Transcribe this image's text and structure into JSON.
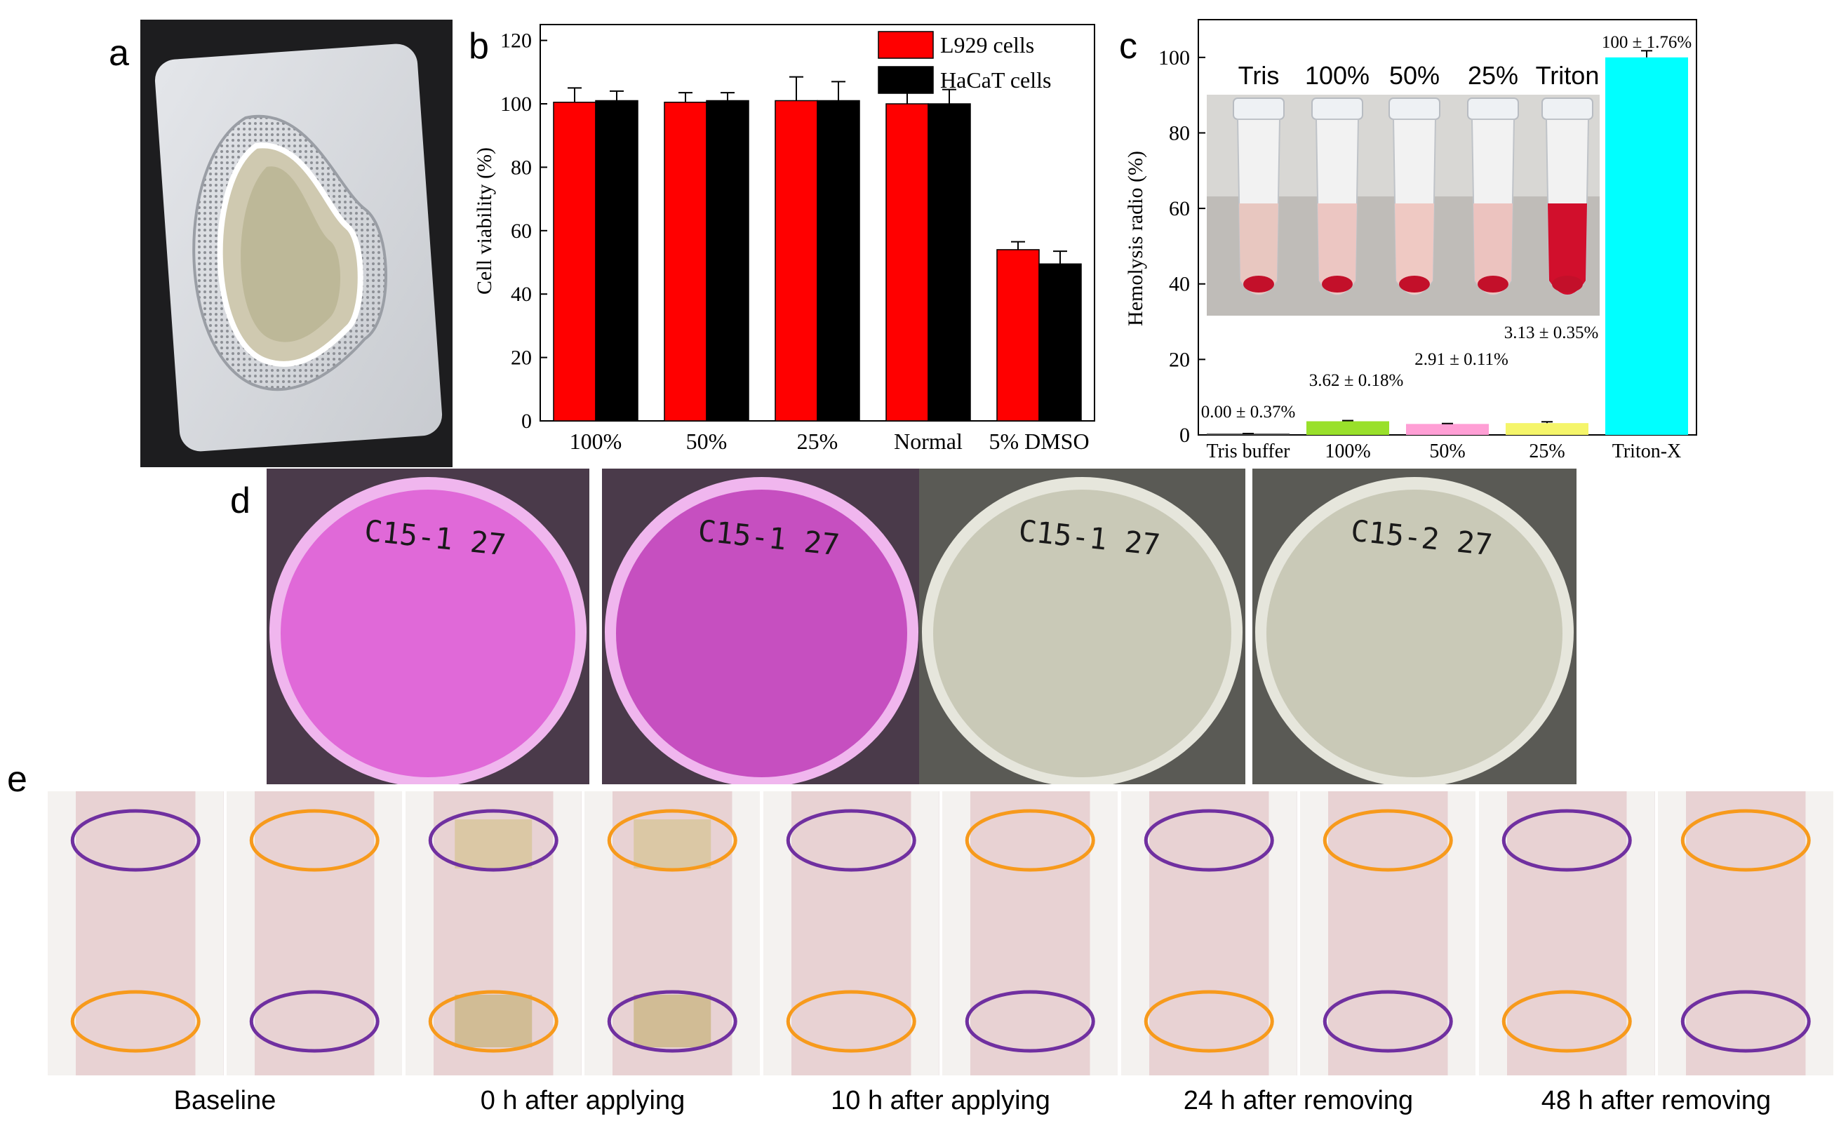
{
  "panels": {
    "a": "a",
    "b": "b",
    "c": "c",
    "d": "d",
    "e": "e"
  },
  "colors": {
    "l929": "#ff0000",
    "hacat": "#000000",
    "tris": "#555555",
    "pct100": "#99e02a",
    "pct50": "#ff9fd5",
    "pct25": "#f5f56a",
    "triton": "#00ffff"
  },
  "chart_data": [
    {
      "panel": "b",
      "type": "bar",
      "ylabel": "Cell viability (%)",
      "xlabel": "",
      "ylim": [
        0,
        125
      ],
      "yticks": [
        0,
        20,
        40,
        60,
        80,
        100,
        120
      ],
      "categories": [
        "100%",
        "50%",
        "25%",
        "Normal",
        "5% DMSO"
      ],
      "legend_position": "top-right",
      "series": [
        {
          "name": "L929 cells",
          "values": [
            100.5,
            100.5,
            101,
            100,
            54
          ],
          "errors": [
            4.5,
            3,
            7.5,
            7,
            2.5
          ]
        },
        {
          "name": "HaCaT cells",
          "values": [
            101,
            101,
            101,
            100,
            49.5
          ],
          "errors": [
            3,
            2.5,
            6,
            4.5,
            4
          ]
        }
      ]
    },
    {
      "panel": "c",
      "type": "bar",
      "ylabel": "Hemolysis radio (%)",
      "xlabel": "",
      "ylim": [
        0,
        110
      ],
      "yticks": [
        0,
        20,
        40,
        60,
        80,
        100
      ],
      "categories": [
        "Tris buffer",
        "100%",
        "50%",
        "25%",
        "Triton-X"
      ],
      "values": [
        0.0,
        3.62,
        2.91,
        3.13,
        100
      ],
      "errors": [
        0.37,
        0.18,
        0.11,
        0.35,
        1.76
      ],
      "data_labels": [
        "0.00 ± 0.37%",
        "3.62 ± 0.18%",
        "2.91 ± 0.11%",
        "3.13 ± 0.35%",
        "100 ± 1.76%"
      ],
      "inset_labels": [
        "Tris",
        "100%",
        "50%",
        "25%",
        "Triton"
      ]
    }
  ],
  "plates": [
    {
      "label": "C15-1 27",
      "color": "pink"
    },
    {
      "label": "C15-1 27",
      "color": "pink"
    },
    {
      "label": "C15-1 27",
      "color": "agar"
    },
    {
      "label": "C15-2 27",
      "color": "agar"
    }
  ],
  "skin_captions": [
    "Baseline",
    "0 h after applying",
    "10 h after applying",
    "24 h after removing",
    "48 h after removing"
  ]
}
